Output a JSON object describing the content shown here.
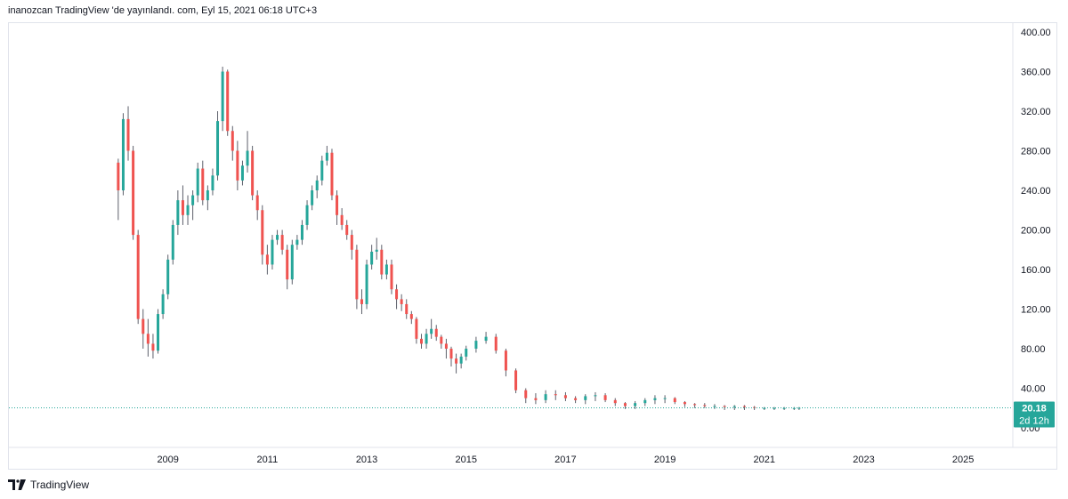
{
  "header": {
    "publisher_line": "inanozcan TradingView 'de yayınlandı. com, Eyl 15, 2021 06:18 UTC+3"
  },
  "footer": {
    "logo_label": "TradingView"
  },
  "colors": {
    "up": "#26a69a",
    "down": "#ef5350",
    "wick": "#5d606b",
    "price_line": "#26a69a",
    "tag_bg": "#26a69a"
  },
  "chart_data": {
    "type": "candlestick",
    "title": "",
    "xlabel": "",
    "ylabel": "",
    "x_ticks": [
      "2009",
      "2011",
      "2013",
      "2015",
      "2017",
      "2019",
      "2021",
      "2023",
      "2025"
    ],
    "y_ticks": [
      "400.00",
      "360.00",
      "320.00",
      "280.00",
      "240.00",
      "200.00",
      "160.00",
      "120.00",
      "80.00",
      "40.00",
      "0.00"
    ],
    "ylim": [
      0,
      400
    ],
    "xlim": [
      2005.8,
      2026.0
    ],
    "grid": false,
    "last_price": {
      "value": 20.18,
      "label": "20.18",
      "countdown": "2d 12h"
    },
    "series": [
      {
        "x": [
          2008.0,
          2008.1,
          2008.2,
          2008.3,
          2008.4,
          2008.5,
          2008.6,
          2008.7,
          2008.8,
          2008.9,
          2009.0,
          2009.1,
          2009.2,
          2009.3,
          2009.4,
          2009.5,
          2009.6,
          2009.7,
          2009.8,
          2009.9,
          2010.0,
          2010.1,
          2010.2,
          2010.3,
          2010.4,
          2010.5,
          2010.6,
          2010.7,
          2010.8,
          2010.9,
          2011.0,
          2011.1,
          2011.2,
          2011.3,
          2011.4,
          2011.5,
          2011.6,
          2011.7,
          2011.8,
          2011.9,
          2012.0,
          2012.1,
          2012.2,
          2012.3,
          2012.4,
          2012.5,
          2012.6,
          2012.7,
          2012.8,
          2012.9,
          2013.0,
          2013.1,
          2013.2,
          2013.3,
          2013.4,
          2013.5,
          2013.6,
          2013.7,
          2013.8,
          2013.9,
          2014.0,
          2014.1,
          2014.2,
          2014.3,
          2014.4,
          2014.5,
          2014.6,
          2014.7,
          2014.8,
          2014.9,
          2015.0,
          2015.2,
          2015.4,
          2015.6,
          2015.8,
          2016.0,
          2016.2,
          2016.4,
          2016.6,
          2016.8,
          2017.0,
          2017.2,
          2017.4,
          2017.6,
          2017.8,
          2018.0,
          2018.2,
          2018.4,
          2018.6,
          2018.8,
          2019.0,
          2019.2,
          2019.4,
          2019.6,
          2019.8,
          2020.0,
          2020.2,
          2020.4,
          2020.6,
          2020.8,
          2021.0,
          2021.2,
          2021.4,
          2021.6,
          2021.7
        ],
        "open": [
          268,
          240,
          312,
          280,
          195,
          110,
          95,
          85,
          78,
          115,
          135,
          170,
          205,
          230,
          215,
          225,
          235,
          262,
          230,
          240,
          255,
          310,
          360,
          300,
          280,
          250,
          265,
          280,
          235,
          220,
          175,
          165,
          190,
          195,
          180,
          150,
          185,
          190,
          205,
          225,
          240,
          250,
          270,
          278,
          235,
          215,
          205,
          195,
          180,
          130,
          125,
          165,
          178,
          180,
          155,
          165,
          140,
          130,
          125,
          115,
          110,
          90,
          85,
          95,
          100,
          92,
          85,
          80,
          70,
          65,
          72,
          80,
          88,
          92,
          78,
          58,
          38,
          30,
          28,
          34,
          33,
          30,
          28,
          32,
          33,
          28,
          25,
          22,
          25,
          28,
          30,
          30,
          26,
          24,
          23,
          22,
          22,
          21,
          22,
          21,
          20,
          20,
          20,
          20,
          20
        ],
        "close": [
          240,
          312,
          280,
          195,
          110,
          95,
          85,
          78,
          115,
          135,
          170,
          205,
          230,
          215,
          225,
          235,
          262,
          230,
          240,
          255,
          310,
          360,
          300,
          280,
          250,
          265,
          280,
          235,
          220,
          175,
          165,
          190,
          195,
          180,
          150,
          185,
          190,
          205,
          225,
          240,
          250,
          270,
          278,
          235,
          215,
          205,
          195,
          180,
          130,
          125,
          165,
          178,
          180,
          155,
          165,
          140,
          130,
          125,
          115,
          110,
          90,
          85,
          95,
          100,
          92,
          85,
          80,
          70,
          65,
          72,
          80,
          88,
          92,
          78,
          58,
          38,
          30,
          28,
          34,
          33,
          30,
          28,
          32,
          33,
          28,
          25,
          22,
          25,
          28,
          30,
          30,
          26,
          24,
          23,
          22,
          22,
          21,
          22,
          21,
          20,
          20,
          20,
          20,
          20,
          20.18
        ],
        "high": [
          272,
          318,
          325,
          285,
          200,
          120,
          110,
          95,
          120,
          140,
          175,
          210,
          240,
          245,
          235,
          240,
          268,
          270,
          245,
          262,
          320,
          365,
          362,
          305,
          290,
          270,
          300,
          285,
          240,
          225,
          185,
          195,
          200,
          200,
          185,
          190,
          195,
          210,
          230,
          245,
          255,
          275,
          285,
          282,
          240,
          222,
          210,
          200,
          185,
          140,
          170,
          185,
          192,
          185,
          170,
          170,
          145,
          135,
          130,
          118,
          112,
          95,
          100,
          110,
          104,
          94,
          90,
          82,
          75,
          75,
          83,
          92,
          97,
          95,
          80,
          60,
          40,
          35,
          38,
          38,
          36,
          32,
          34,
          36,
          35,
          30,
          26,
          27,
          30,
          33,
          33,
          31,
          27,
          25,
          25,
          24,
          23,
          23,
          23,
          22,
          21,
          21,
          21,
          21,
          21
        ],
        "low": [
          210,
          235,
          270,
          190,
          105,
          80,
          72,
          70,
          75,
          110,
          130,
          165,
          195,
          205,
          205,
          210,
          228,
          225,
          220,
          235,
          250,
          300,
          295,
          270,
          240,
          245,
          258,
          230,
          210,
          165,
          155,
          160,
          185,
          175,
          140,
          145,
          180,
          185,
          200,
          220,
          232,
          245,
          265,
          230,
          205,
          200,
          190,
          170,
          120,
          115,
          120,
          160,
          170,
          150,
          150,
          135,
          120,
          118,
          110,
          105,
          85,
          80,
          80,
          90,
          88,
          80,
          70,
          62,
          55,
          60,
          68,
          76,
          85,
          75,
          52,
          35,
          25,
          24,
          25,
          28,
          27,
          25,
          24,
          27,
          26,
          22,
          19,
          19,
          22,
          24,
          25,
          24,
          21,
          20,
          20,
          19,
          18,
          18,
          18,
          18,
          18,
          18,
          18,
          18,
          18
        ]
      }
    ]
  }
}
